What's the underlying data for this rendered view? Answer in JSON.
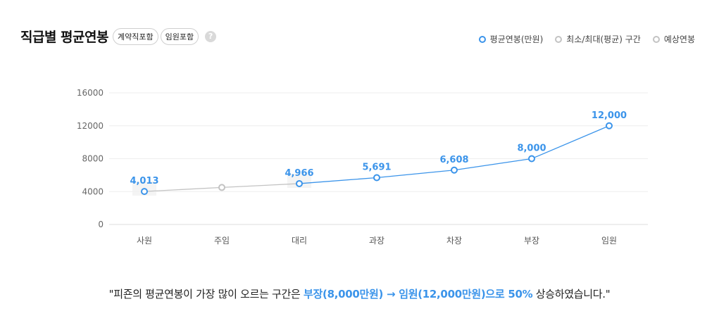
{
  "header": {
    "title": "직급별 평균연봉",
    "chips": [
      "계약직포함",
      "임원포함"
    ],
    "help_icon": "question-icon",
    "help_text": "?"
  },
  "legend": [
    {
      "label": "평균연봉(만원)",
      "color": "#3b94ea"
    },
    {
      "label": "최소/최대(평균) 구간",
      "color": "#c3c3c3"
    },
    {
      "label": "예상연봉",
      "color": "#c3c3c3"
    }
  ],
  "chart_data": {
    "type": "line",
    "categories": [
      "사원",
      "주임",
      "대리",
      "과장",
      "차장",
      "부장",
      "임원"
    ],
    "series": [
      {
        "name": "평균연봉(만원)",
        "values": [
          4013,
          4500,
          4966,
          5691,
          6608,
          8000,
          12000
        ],
        "labels": [
          "4,013",
          "",
          "4,966",
          "5,691",
          "6,608",
          "8,000",
          "12,000"
        ],
        "estimated": [
          false,
          true,
          false,
          false,
          false,
          false,
          false
        ]
      }
    ],
    "ylim": [
      0,
      16000
    ],
    "yticks": [
      "0",
      "4000",
      "8000",
      "12000",
      "16000"
    ],
    "grid": true,
    "colors": {
      "actual": "#3b94ea",
      "estimated": "#c3c3c3"
    }
  },
  "summary": {
    "prefix": "\"피죤의 평균연봉이 가장 많이 오르는 구간은 ",
    "highlight": "부장(8,000만원) → 임원(12,000만원)으로 50%",
    "suffix": " 상승하였습니다.\""
  }
}
